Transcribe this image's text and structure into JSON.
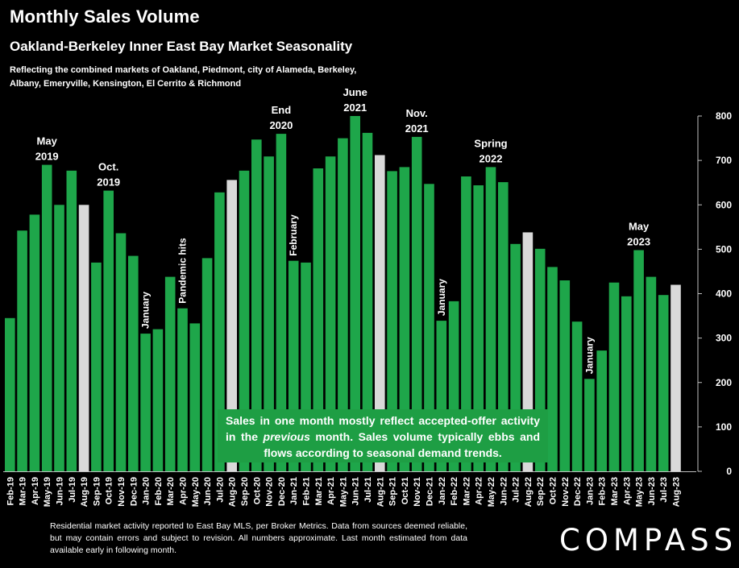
{
  "header": {
    "title": "Monthly Sales Volume",
    "subtitle": "Oakland-Berkeley Inner East Bay Market Seasonality",
    "description": "Reflecting the combined markets of Oakland, Piedmont, city of Alameda, Berkeley, Albany, Emeryville, Kensington, El Cerrito & Richmond"
  },
  "callout": {
    "before": "Sales in one month mostly reflect accepted-offer activity in the ",
    "emphasis": "previous",
    "after": " month. Sales volume typically ebbs and flows according to seasonal demand trends."
  },
  "footer": {
    "note": "Residential market activity reported to East Bay MLS, per Broker Metrics. Data from sources deemed reliable, but may contain errors and subject to revision. All numbers approximate. Last month estimated from data available early in following month.",
    "logo": "COMPASS"
  },
  "colors": {
    "bar": "#1ea64a",
    "highlight_bar": "#d9d9d9",
    "background": "#000000",
    "callout": "#1e9e44"
  },
  "chart_data": {
    "type": "bar",
    "categories": [
      "Feb-19",
      "Mar-19",
      "Apr-19",
      "May-19",
      "Jun-19",
      "Jul-19",
      "Aug-19",
      "Sep-19",
      "Oct-19",
      "Nov-19",
      "Dec-19",
      "Jan-20",
      "Feb-20",
      "Mar-20",
      "Apr-20",
      "May-20",
      "Jun-20",
      "Jul-20",
      "Aug-20",
      "Sep-20",
      "Oct-20",
      "Nov-20",
      "Dec-20",
      "Jan-21",
      "Feb-21",
      "Mar-21",
      "Apr-21",
      "May-21",
      "Jun-21",
      "Jul-21",
      "Aug-21",
      "Sep-21",
      "Oct-21",
      "Nov-21",
      "Dec-21",
      "Jan-22",
      "Feb-22",
      "Mar-22",
      "Apr-22",
      "May-22",
      "Jun-22",
      "Jul-22",
      "Aug-22",
      "Sep-22",
      "Oct-22",
      "Nov-22",
      "Dec-22",
      "Jan-23",
      "Feb-23",
      "Mar-23",
      "Apr-23",
      "May-23",
      "Jun-23",
      "Jul-23",
      "Aug-23"
    ],
    "values": [
      345,
      542,
      578,
      690,
      600,
      677,
      600,
      470,
      632,
      536,
      485,
      310,
      320,
      438,
      367,
      333,
      480,
      628,
      656,
      677,
      747,
      709,
      760,
      474,
      470,
      682,
      709,
      750,
      800,
      762,
      712,
      676,
      685,
      753,
      647,
      339,
      383,
      664,
      644,
      685,
      651,
      512,
      538,
      501,
      460,
      430,
      337,
      208,
      272,
      425,
      394,
      498,
      438,
      397,
      420
    ],
    "highlighted": [
      "Aug-19",
      "Aug-20",
      "Aug-21",
      "Aug-22",
      "Aug-23"
    ],
    "ylim": [
      0,
      800
    ],
    "yticks": [
      "0",
      "100",
      "200",
      "300",
      "400",
      "500",
      "600",
      "700",
      "800"
    ],
    "grid": false,
    "y_axis_side": "right",
    "annotations": [
      {
        "category": "May-19",
        "lines": [
          "May",
          "2019"
        ],
        "orientation": "horizontal"
      },
      {
        "category": "Oct-19",
        "lines": [
          "Oct.",
          "2019"
        ],
        "orientation": "horizontal"
      },
      {
        "category": "Jan-20",
        "lines": [
          "January"
        ],
        "orientation": "vertical"
      },
      {
        "category": "Apr-20",
        "lines": [
          "Pandemic hits"
        ],
        "orientation": "vertical"
      },
      {
        "category": "Dec-20",
        "lines": [
          "End",
          "2020"
        ],
        "orientation": "horizontal"
      },
      {
        "category": "Jan-21",
        "lines": [
          "February"
        ],
        "orientation": "vertical"
      },
      {
        "category": "Jun-21",
        "lines": [
          "June",
          "2021"
        ],
        "orientation": "horizontal"
      },
      {
        "category": "Nov-21",
        "lines": [
          "Nov.",
          "2021"
        ],
        "orientation": "horizontal"
      },
      {
        "category": "Jan-22",
        "lines": [
          "January"
        ],
        "orientation": "vertical"
      },
      {
        "category": "May-22",
        "lines": [
          "Spring",
          "2022"
        ],
        "orientation": "horizontal"
      },
      {
        "category": "Jan-23",
        "lines": [
          "January"
        ],
        "orientation": "vertical"
      },
      {
        "category": "May-23",
        "lines": [
          "May",
          "2023"
        ],
        "orientation": "horizontal"
      }
    ]
  }
}
